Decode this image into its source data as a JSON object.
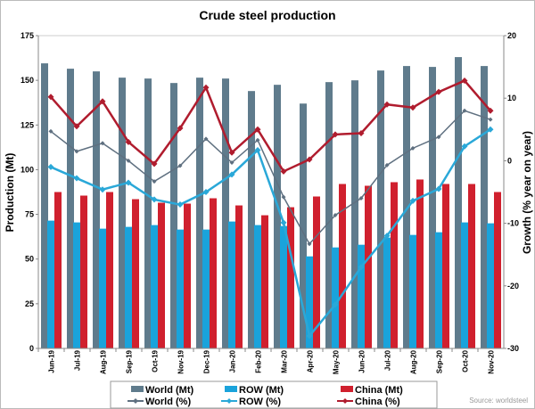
{
  "chart_data": {
    "type": "bar+line",
    "title": "Crude steel production",
    "ylabel": "Production (Mt)",
    "y2label": "Growth (% year on year)",
    "ylim": [
      0,
      175
    ],
    "yticks": [
      0,
      25,
      50,
      75,
      100,
      125,
      150,
      175
    ],
    "y2lim": [
      -30,
      20
    ],
    "y2ticks": [
      -30,
      -20,
      -10,
      0,
      10,
      20
    ],
    "categories": [
      "Jun-19",
      "Jul-19",
      "Aug-19",
      "Sep-19",
      "Oct-19",
      "Nov-19",
      "Dec-19",
      "Jan-20",
      "Feb-20",
      "Mar-20",
      "Apr-20",
      "May-20",
      "Jun-20",
      "Jul-20",
      "Aug-20",
      "Sep-20",
      "Oct-20",
      "Nov-20"
    ],
    "bar_series": [
      {
        "name": "World (Mt)",
        "color": "#5f7b8c",
        "values": [
          159.5,
          156.5,
          155,
          151.5,
          151,
          148.5,
          151.5,
          151,
          144,
          147.5,
          137,
          149,
          150,
          155.5,
          158,
          157.5,
          163,
          158
        ]
      },
      {
        "name": "ROW (Mt)",
        "color": "#1aa3db",
        "values": [
          71.5,
          70.5,
          67,
          68,
          69,
          66.5,
          66.5,
          71,
          69,
          68.5,
          51.5,
          56.5,
          58,
          62,
          63.5,
          65,
          70.5,
          70
        ]
      },
      {
        "name": "China (Mt)",
        "color": "#d0202e",
        "values": [
          87.5,
          85.5,
          87.5,
          83.5,
          81.5,
          81,
          84,
          80,
          74.5,
          79,
          85,
          92,
          91,
          93,
          94.5,
          92,
          92,
          87.5
        ]
      }
    ],
    "line_series": [
      {
        "name": "World (%)",
        "color": "#5f7080",
        "axis": "right",
        "values": [
          4.7,
          1.5,
          2.8,
          0,
          -3.3,
          -0.8,
          3.5,
          -0.3,
          3.3,
          -5.8,
          -13.3,
          -8.7,
          -6,
          -0.7,
          2,
          3.8,
          8,
          6.6
        ]
      },
      {
        "name": "ROW (%)",
        "color": "#2aa8d8",
        "axis": "right",
        "values": [
          -1,
          -2.8,
          -4.6,
          -3.5,
          -6.2,
          -7,
          -5,
          -2.2,
          1.7,
          -9.9,
          -28,
          -23,
          -17,
          -12,
          -6.4,
          -4.5,
          2.3,
          5
        ]
      },
      {
        "name": "China (%)",
        "color": "#b01c2e",
        "axis": "right",
        "values": [
          10.2,
          5.5,
          9.5,
          3,
          -0.5,
          5.2,
          11.7,
          1.3,
          5,
          -1.7,
          0.2,
          4.2,
          4.4,
          9,
          8.5,
          11,
          12.8,
          8
        ]
      }
    ],
    "legend": "bottom",
    "grid": false,
    "source": "Source: worldsteel"
  }
}
